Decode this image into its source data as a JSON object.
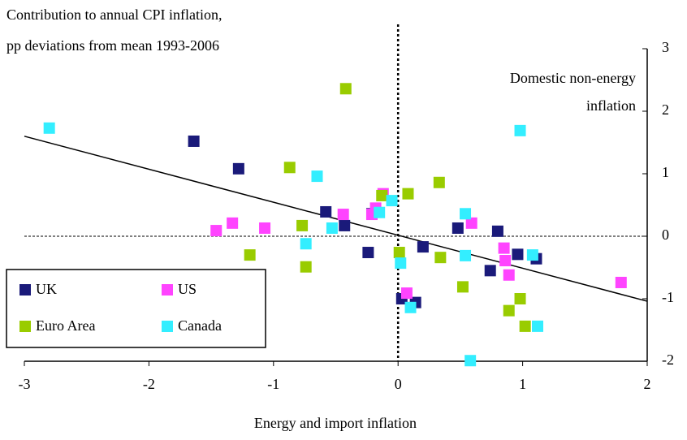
{
  "chart_data": {
    "type": "scatter",
    "title": "Contribution to annual CPI inflation,",
    "subtitle": "pp deviations from mean 1993-2006",
    "annotation": [
      "Domestic non-energy",
      "inflation"
    ],
    "x_label": "Energy and import inflation",
    "xlim": [
      -3,
      2
    ],
    "xticks": [
      -3,
      -2,
      -1,
      0,
      1,
      2
    ],
    "ylim": [
      -2,
      3
    ],
    "yticks": [
      -2,
      -1,
      0,
      1,
      2,
      3
    ],
    "legend": "bottom-left",
    "series": [
      {
        "name": "UK",
        "color": "#1a1a7a",
        "x": [
          -1.64,
          -1.28,
          -0.58,
          -0.43,
          -0.24,
          0.2,
          0.48,
          0.8,
          0.96,
          1.11,
          0.74,
          0.03,
          0.14,
          -0.21
        ],
        "values": [
          1.52,
          1.08,
          0.39,
          0.17,
          -0.26,
          -0.17,
          0.13,
          0.08,
          -0.29,
          -0.36,
          -0.55,
          -1.0,
          -1.06,
          0.36
        ]
      },
      {
        "name": "US",
        "color": "#ff44ff",
        "x": [
          -1.46,
          -1.33,
          -1.07,
          -0.44,
          -0.18,
          -0.12,
          -0.21,
          0.59,
          0.85,
          0.86,
          0.89,
          1.79,
          0.07
        ],
        "values": [
          0.09,
          0.21,
          0.13,
          0.35,
          0.45,
          0.68,
          0.35,
          0.21,
          -0.19,
          -0.39,
          -0.62,
          -0.74,
          -0.91
        ]
      },
      {
        "name": "Euro Area",
        "color": "#99cc00",
        "x": [
          -0.42,
          -0.87,
          -1.19,
          -0.77,
          -0.74,
          -0.13,
          0.08,
          0.33,
          0.34,
          0.52,
          0.01,
          0.89,
          0.98,
          1.02
        ],
        "values": [
          2.36,
          1.1,
          -0.3,
          0.17,
          -0.49,
          0.65,
          0.68,
          0.86,
          -0.34,
          -0.81,
          -0.26,
          -1.19,
          -1.0,
          -1.44
        ]
      },
      {
        "name": "Canada",
        "color": "#33eeff",
        "x": [
          -2.8,
          -0.65,
          -0.74,
          -0.53,
          -0.15,
          -0.05,
          0.02,
          0.1,
          0.54,
          0.54,
          0.98,
          1.08,
          1.12,
          0.58
        ],
        "values": [
          1.73,
          0.96,
          -0.12,
          0.13,
          0.38,
          0.57,
          -0.43,
          -1.14,
          0.36,
          -0.31,
          1.69,
          -0.3,
          -1.44,
          -1.99
        ]
      }
    ],
    "trendline": {
      "x": [
        -3,
        2
      ],
      "y": [
        1.6,
        -1.04
      ]
    }
  }
}
